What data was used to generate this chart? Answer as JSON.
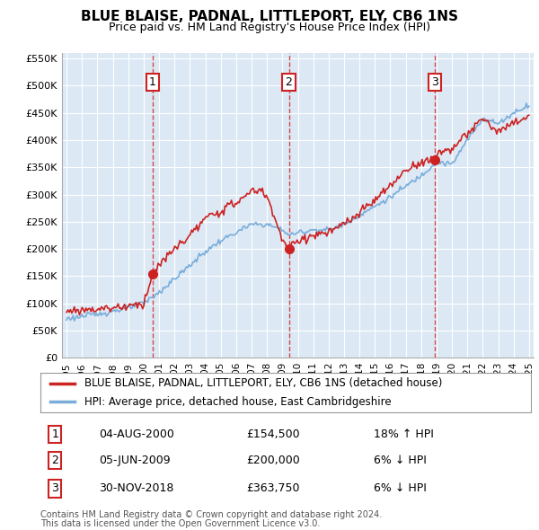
{
  "title": "BLUE BLAISE, PADNAL, LITTLEPORT, ELY, CB6 1NS",
  "subtitle": "Price paid vs. HM Land Registry's House Price Index (HPI)",
  "legend_line1": "BLUE BLAISE, PADNAL, LITTLEPORT, ELY, CB6 1NS (detached house)",
  "legend_line2": "HPI: Average price, detached house, East Cambridgeshire",
  "footnote1": "Contains HM Land Registry data © Crown copyright and database right 2024.",
  "footnote2": "This data is licensed under the Open Government Licence v3.0.",
  "sales": [
    {
      "num": 1,
      "date": "04-AUG-2000",
      "price": 154500,
      "hpi_diff": "18% ↑ HPI",
      "year": 2000.58
    },
    {
      "num": 2,
      "date": "05-JUN-2009",
      "price": 200000,
      "hpi_diff": "6% ↓ HPI",
      "year": 2009.42
    },
    {
      "num": 3,
      "date": "30-NOV-2018",
      "price": 363750,
      "hpi_diff": "6% ↓ HPI",
      "year": 2018.91
    }
  ],
  "red_color": "#cc2222",
  "blue_color": "#7aadda",
  "ylim": [
    0,
    560000
  ],
  "xlim_start": 1994.7,
  "xlim_end": 2025.3,
  "chart_bg": "#dce9f5",
  "background_color": "#ffffff",
  "grid_color": "#ffffff",
  "vline_color": "#cc2222",
  "yticks": [
    0,
    50000,
    100000,
    150000,
    200000,
    250000,
    300000,
    350000,
    400000,
    450000,
    500000,
    550000
  ],
  "ytick_labels": [
    "£0",
    "£50K",
    "£100K",
    "£150K",
    "£200K",
    "£250K",
    "£300K",
    "£350K",
    "£400K",
    "£450K",
    "£500K",
    "£550K"
  ],
  "xticks": [
    1995,
    1996,
    1997,
    1998,
    1999,
    2000,
    2001,
    2002,
    2003,
    2004,
    2005,
    2006,
    2007,
    2008,
    2009,
    2010,
    2011,
    2012,
    2013,
    2014,
    2015,
    2016,
    2017,
    2018,
    2019,
    2020,
    2021,
    2022,
    2023,
    2024,
    2025
  ],
  "hpi_knots_x": [
    1995,
    1996,
    1997,
    1998,
    1999,
    2000,
    2001,
    2002,
    2003,
    2004,
    2005,
    2006,
    2007,
    2008,
    2009,
    2009.5,
    2010,
    2011,
    2012,
    2013,
    2014,
    2015,
    2016,
    2017,
    2018,
    2019,
    2020,
    2021,
    2022,
    2023,
    2024,
    2025
  ],
  "hpi_knots_y": [
    72000,
    76000,
    80000,
    86000,
    92000,
    100000,
    120000,
    145000,
    170000,
    195000,
    215000,
    230000,
    245000,
    245000,
    235000,
    225000,
    230000,
    235000,
    235000,
    245000,
    262000,
    278000,
    295000,
    315000,
    335000,
    360000,
    355000,
    400000,
    440000,
    430000,
    450000,
    465000
  ],
  "red_knots_x": [
    1995,
    1996,
    1997,
    1998,
    1999,
    2000,
    2000.58,
    2001,
    2002,
    2003,
    2004,
    2005,
    2006,
    2007,
    2007.5,
    2008,
    2008.5,
    2009,
    2009.42,
    2010,
    2011,
    2012,
    2013,
    2014,
    2015,
    2016,
    2017,
    2018,
    2018.91,
    2019,
    2020,
    2021,
    2022,
    2023,
    2024,
    2025
  ],
  "red_knots_y": [
    85000,
    88000,
    90000,
    92000,
    95000,
    100000,
    154500,
    170000,
    200000,
    225000,
    255000,
    270000,
    285000,
    305000,
    310000,
    295000,
    260000,
    215000,
    200000,
    215000,
    225000,
    230000,
    245000,
    265000,
    290000,
    315000,
    345000,
    360000,
    363750,
    375000,
    385000,
    410000,
    440000,
    415000,
    430000,
    445000
  ]
}
